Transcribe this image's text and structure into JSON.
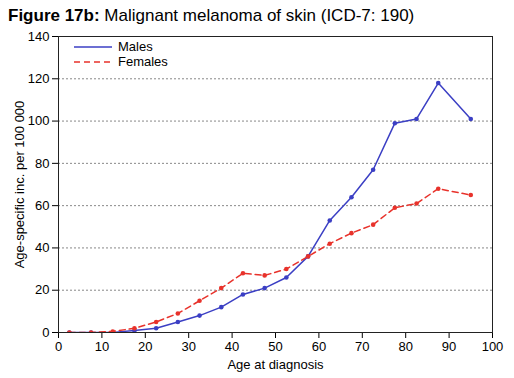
{
  "chart_data": {
    "type": "line",
    "title": "Figure 17b: Malignant melanoma of skin (ICD-7: 190)",
    "x_label": "Age at diagnosis",
    "y_label": "Age-specific inc. per 100 000",
    "x": [
      2.5,
      7.5,
      12.5,
      17.5,
      22.5,
      27.5,
      32.5,
      37.5,
      42.5,
      47.5,
      52.5,
      57.5,
      62.5,
      67.5,
      72.5,
      77.5,
      82.5,
      87.5,
      95
    ],
    "series": [
      {
        "name": "Males",
        "color": "#3b3fc4",
        "line_style": "solid",
        "marker": "circle",
        "values": [
          0,
          0,
          0,
          1,
          2,
          5,
          8,
          12,
          18,
          21,
          26,
          36,
          53,
          64,
          77,
          99,
          101,
          118,
          101
        ]
      },
      {
        "name": "Females",
        "color": "#e8322b",
        "line_style": "dashed",
        "marker": "circle",
        "values": [
          0,
          0,
          0.5,
          2,
          5,
          9,
          15,
          21,
          28,
          27,
          30,
          36,
          42,
          47,
          51,
          59,
          61,
          68,
          65
        ]
      }
    ],
    "xlim": [
      0,
      100
    ],
    "xticks": [
      0,
      10,
      20,
      30,
      40,
      50,
      60,
      70,
      80,
      90,
      100
    ],
    "ylim": [
      0,
      140
    ],
    "yticks": [
      0,
      20,
      40,
      60,
      80,
      100,
      120,
      140
    ],
    "grid": true,
    "legend": "upper left"
  }
}
